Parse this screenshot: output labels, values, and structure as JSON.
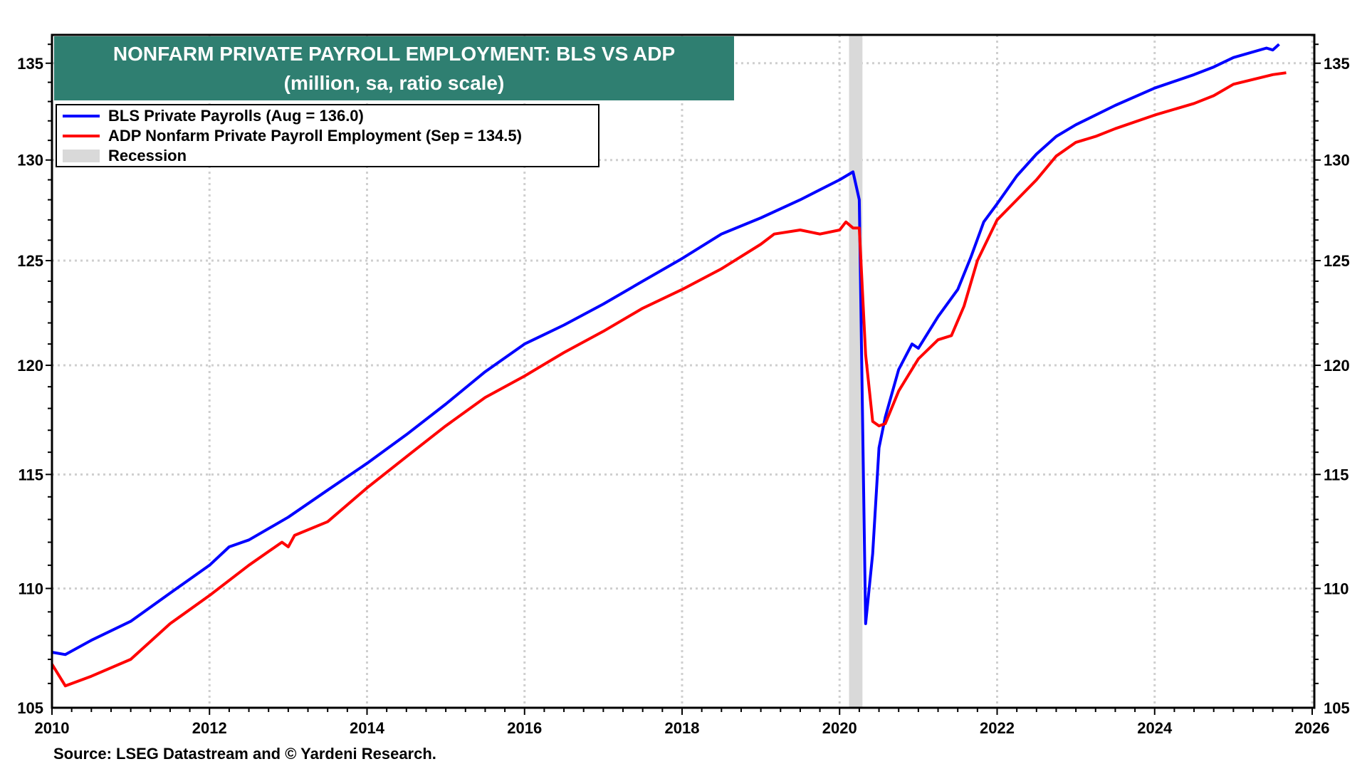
{
  "chart_data": {
    "type": "line",
    "title": "NONFARM PRIVATE PAYROLL EMPLOYMENT: BLS VS ADP",
    "subtitle": "(million, sa, ratio scale)",
    "xlabel": "",
    "ylabel": "",
    "scale": "log",
    "xlim": [
      2010,
      2026
    ],
    "ylim": [
      105,
      136.5
    ],
    "x_ticks": [
      "2010",
      "2012",
      "2014",
      "2016",
      "2018",
      "2020",
      "2022",
      "2024",
      "2026"
    ],
    "y_ticks": [
      "105",
      "110",
      "115",
      "120",
      "125",
      "130",
      "135"
    ],
    "grid": true,
    "legend_position": "top-left",
    "recession": {
      "label": "Recession",
      "start": 2020.12,
      "end": 2020.29,
      "color": "#d9d9d9"
    },
    "series": [
      {
        "name": "BLS Private Payrolls",
        "legend": "BLS Private Payrolls  (Aug  = 136.0)",
        "color": "#0000ff",
        "points": [
          [
            2010.0,
            107.3
          ],
          [
            2010.17,
            107.2
          ],
          [
            2010.5,
            107.8
          ],
          [
            2011.0,
            108.6
          ],
          [
            2011.5,
            109.8
          ],
          [
            2012.0,
            111.0
          ],
          [
            2012.25,
            111.8
          ],
          [
            2012.5,
            112.1
          ],
          [
            2013.0,
            113.1
          ],
          [
            2013.5,
            114.3
          ],
          [
            2014.0,
            115.5
          ],
          [
            2014.5,
            116.8
          ],
          [
            2015.0,
            118.2
          ],
          [
            2015.5,
            119.7
          ],
          [
            2016.0,
            121.0
          ],
          [
            2016.5,
            121.9
          ],
          [
            2017.0,
            122.9
          ],
          [
            2017.5,
            124.0
          ],
          [
            2018.0,
            125.1
          ],
          [
            2018.5,
            126.3
          ],
          [
            2019.0,
            127.1
          ],
          [
            2019.5,
            128.0
          ],
          [
            2020.0,
            129.0
          ],
          [
            2020.17,
            129.4
          ],
          [
            2020.25,
            128.0
          ],
          [
            2020.33,
            108.5
          ],
          [
            2020.42,
            111.5
          ],
          [
            2020.5,
            116.2
          ],
          [
            2020.58,
            117.6
          ],
          [
            2020.75,
            119.8
          ],
          [
            2020.92,
            121.0
          ],
          [
            2021.0,
            120.8
          ],
          [
            2021.25,
            122.3
          ],
          [
            2021.5,
            123.6
          ],
          [
            2021.67,
            125.2
          ],
          [
            2021.83,
            126.9
          ],
          [
            2022.0,
            127.8
          ],
          [
            2022.25,
            129.2
          ],
          [
            2022.5,
            130.3
          ],
          [
            2022.75,
            131.2
          ],
          [
            2023.0,
            131.8
          ],
          [
            2023.5,
            132.8
          ],
          [
            2024.0,
            133.7
          ],
          [
            2024.5,
            134.4
          ],
          [
            2024.75,
            134.8
          ],
          [
            2025.0,
            135.3
          ],
          [
            2025.42,
            135.8
          ],
          [
            2025.5,
            135.7
          ],
          [
            2025.58,
            136.0
          ]
        ]
      },
      {
        "name": "ADP Nonfarm Private Payroll Employment",
        "legend": "ADP Nonfarm Private Payroll Employment  (Sep  = 134.5)",
        "color": "#ff0000",
        "points": [
          [
            2010.0,
            106.8
          ],
          [
            2010.17,
            105.9
          ],
          [
            2010.5,
            106.3
          ],
          [
            2011.0,
            107.0
          ],
          [
            2011.5,
            108.5
          ],
          [
            2012.0,
            109.7
          ],
          [
            2012.5,
            111.0
          ],
          [
            2012.92,
            112.0
          ],
          [
            2013.0,
            111.8
          ],
          [
            2013.08,
            112.3
          ],
          [
            2013.5,
            112.9
          ],
          [
            2014.0,
            114.4
          ],
          [
            2014.5,
            115.8
          ],
          [
            2015.0,
            117.2
          ],
          [
            2015.5,
            118.5
          ],
          [
            2016.0,
            119.5
          ],
          [
            2016.5,
            120.6
          ],
          [
            2017.0,
            121.6
          ],
          [
            2017.5,
            122.7
          ],
          [
            2018.0,
            123.6
          ],
          [
            2018.5,
            124.6
          ],
          [
            2019.0,
            125.8
          ],
          [
            2019.17,
            126.3
          ],
          [
            2019.5,
            126.5
          ],
          [
            2019.75,
            126.3
          ],
          [
            2020.0,
            126.5
          ],
          [
            2020.08,
            126.9
          ],
          [
            2020.17,
            126.6
          ],
          [
            2020.25,
            126.6
          ],
          [
            2020.33,
            120.5
          ],
          [
            2020.42,
            117.4
          ],
          [
            2020.5,
            117.2
          ],
          [
            2020.58,
            117.3
          ],
          [
            2020.75,
            118.8
          ],
          [
            2021.0,
            120.3
          ],
          [
            2021.25,
            121.2
          ],
          [
            2021.42,
            121.4
          ],
          [
            2021.58,
            122.8
          ],
          [
            2021.75,
            125.0
          ],
          [
            2022.0,
            127.0
          ],
          [
            2022.25,
            128.0
          ],
          [
            2022.5,
            129.0
          ],
          [
            2022.75,
            130.2
          ],
          [
            2023.0,
            130.9
          ],
          [
            2023.25,
            131.2
          ],
          [
            2023.5,
            131.6
          ],
          [
            2024.0,
            132.3
          ],
          [
            2024.5,
            132.9
          ],
          [
            2024.75,
            133.3
          ],
          [
            2025.0,
            133.9
          ],
          [
            2025.5,
            134.4
          ],
          [
            2025.67,
            134.5
          ]
        ]
      }
    ],
    "source": "Source: LSEG Datastream and © Yardeni Research."
  }
}
